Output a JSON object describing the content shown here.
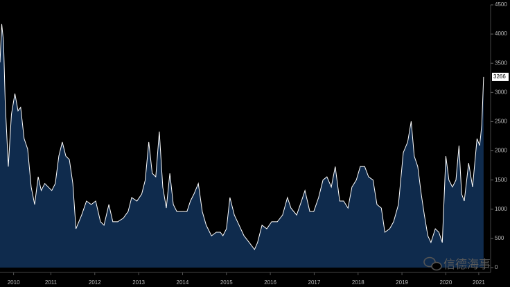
{
  "chart_data": {
    "type": "area",
    "watermark": "信德海事",
    "x": [
      2010.34,
      2010.38,
      2010.42,
      2010.46,
      2010.53,
      2010.6,
      2010.68,
      2010.75,
      2010.81,
      2010.89,
      2010.97,
      2011.05,
      2011.13,
      2011.21,
      2011.28,
      2011.36,
      2011.44,
      2011.52,
      2011.6,
      2011.68,
      2011.76,
      2011.84,
      2011.92,
      2012.0,
      2012.07,
      2012.2,
      2012.31,
      2012.42,
      2012.52,
      2012.63,
      2012.71,
      2012.82,
      2012.91,
      2013.02,
      2013.15,
      2013.26,
      2013.34,
      2013.46,
      2013.57,
      2013.65,
      2013.73,
      2013.81,
      2013.89,
      2013.97,
      2014.05,
      2014.13,
      2014.21,
      2014.29,
      2014.37,
      2014.48,
      2014.6,
      2014.68,
      2014.76,
      2014.86,
      2014.95,
      2015.04,
      2015.16,
      2015.27,
      2015.36,
      2015.42,
      2015.5,
      2015.58,
      2015.68,
      2015.79,
      2015.9,
      2016.02,
      2016.14,
      2016.21,
      2016.31,
      2016.42,
      2016.53,
      2016.66,
      2016.78,
      2016.89,
      2016.97,
      2017.1,
      2017.21,
      2017.29,
      2017.4,
      2017.49,
      2017.6,
      2017.7,
      2017.79,
      2017.89,
      2017.98,
      2018.08,
      2018.17,
      2018.27,
      2018.36,
      2018.46,
      2018.55,
      2018.65,
      2018.74,
      2018.84,
      2018.93,
      2019.03,
      2019.11,
      2019.22,
      2019.31,
      2019.42,
      2019.53,
      2019.63,
      2019.71,
      2019.78,
      2019.86,
      2019.94,
      2020.01,
      2020.09,
      2020.16,
      2020.26,
      2020.34,
      2020.42,
      2020.5,
      2020.57,
      2020.65,
      2020.73,
      2020.8,
      2020.86,
      2020.92,
      2021.02,
      2021.11,
      2021.21,
      2021.27,
      2021.32,
      2021.36
    ],
    "series": [
      {
        "color": "#ffffff",
        "fill": "#0f2b4d",
        "values": [
          3515,
          4170,
          3870,
          2800,
          1730,
          2625,
          2980,
          2685,
          2745,
          2210,
          2030,
          1380,
          1080,
          1555,
          1320,
          1440,
          1380,
          1320,
          1440,
          1910,
          2150,
          1910,
          1850,
          1440,
          665,
          900,
          1140,
          1080,
          1140,
          785,
          725,
          1080,
          785,
          785,
          845,
          960,
          1200,
          1140,
          1260,
          1500,
          2150,
          1615,
          1555,
          2330,
          1380,
          1020,
          1615,
          1080,
          960,
          960,
          960,
          1140,
          1260,
          1440,
          960,
          725,
          545,
          605,
          605,
          545,
          665,
          1200,
          900,
          725,
          545,
          430,
          310,
          430,
          725,
          665,
          785,
          785,
          900,
          1200,
          1020,
          900,
          1140,
          1320,
          960,
          960,
          1200,
          1500,
          1555,
          1380,
          1730,
          1140,
          1140,
          1020,
          1380,
          1500,
          1730,
          1730,
          1555,
          1500,
          1080,
          1020,
          605,
          665,
          785,
          1080,
          1970,
          2150,
          2505,
          1910,
          1730,
          1260,
          900,
          545,
          430,
          665,
          605,
          430,
          1910,
          1500,
          1380,
          1500,
          2090,
          1260,
          1140,
          1790,
          1380,
          2210,
          2090,
          2445,
          3266
        ]
      }
    ],
    "xlim": [
      2010.34,
      2021.52
    ],
    "xticks": [
      {
        "value": 2010.65,
        "label": "2010"
      },
      {
        "value": 2011.5,
        "label": "2011"
      },
      {
        "value": 2012.5,
        "label": "2012"
      },
      {
        "value": 2013.5,
        "label": "2013"
      },
      {
        "value": 2014.5,
        "label": "2014"
      },
      {
        "value": 2015.5,
        "label": "2015"
      },
      {
        "value": 2016.5,
        "label": "2016"
      },
      {
        "value": 2017.5,
        "label": "2017"
      },
      {
        "value": 2018.5,
        "label": "2018"
      },
      {
        "value": 2019.5,
        "label": "2019"
      },
      {
        "value": 2020.5,
        "label": "2020"
      },
      {
        "value": 2021.25,
        "label": "2021"
      }
    ],
    "ylim": [
      0,
      4500
    ],
    "yticks": [
      0,
      500,
      1000,
      1500,
      2000,
      2500,
      3000,
      3500,
      4000,
      4500
    ]
  }
}
